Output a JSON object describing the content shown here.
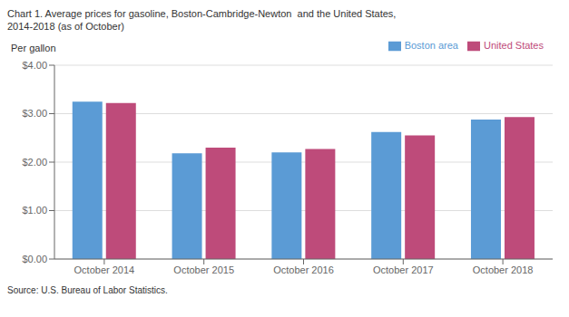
{
  "chart_data": {
    "type": "bar",
    "title": "Chart 1. Average prices for gasoline, Boston-Cambridge-Newton  and the United States,",
    "subtitle": "2014-2018 (as of October)",
    "ylabel": "Per gallon",
    "annotations": [
      "Source: U.S. Bureau of Labor Statistics."
    ],
    "categories": [
      "October 2014",
      "October 2015",
      "October 2016",
      "October 2017",
      "October 2018"
    ],
    "series": [
      {
        "name": "Boston area",
        "color": "#5B9BD5",
        "values": [
          3.25,
          2.18,
          2.2,
          2.62,
          2.88
        ]
      },
      {
        "name": "United States",
        "color": "#BE4B7A",
        "values": [
          3.22,
          2.3,
          2.27,
          2.55,
          2.93
        ]
      }
    ],
    "ylim": [
      0,
      4.0
    ],
    "yticks": [
      {
        "value": 0.0,
        "label": "$0.00"
      },
      {
        "value": 1.0,
        "label": "$1.00"
      },
      {
        "value": 2.0,
        "label": "$2.00"
      },
      {
        "value": 3.0,
        "label": "$3.00"
      },
      {
        "value": 4.0,
        "label": "$4.00"
      }
    ],
    "grid": true,
    "legend": "upper right"
  }
}
